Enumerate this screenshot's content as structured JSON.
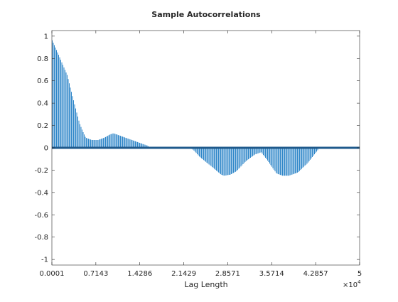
{
  "chart_data": {
    "type": "area",
    "title": "Sample Autocorrelations",
    "xlabel": "Lag Length",
    "ylabel": "",
    "x_exponent_label": "×10",
    "x_exponent_power": "4",
    "xlim": [
      1,
      50000
    ],
    "ylim": [
      -1.05,
      1.05
    ],
    "x_ticks": [
      1,
      7143,
      14286,
      21429,
      28571,
      35714,
      42857,
      50000
    ],
    "x_tick_labels": [
      "0.0001",
      "0.7143",
      "1.4286",
      "2.1429",
      "2.8571",
      "3.5714",
      "4.2857",
      "5"
    ],
    "y_ticks": [
      1,
      0.8,
      0.6,
      0.4,
      0.2,
      0,
      -0.2,
      -0.4,
      -0.6,
      -0.8,
      -1
    ],
    "y_tick_labels": [
      "1",
      "0.8",
      "0.6",
      "0.4",
      "0.2",
      "0",
      "-0.2",
      "-0.4",
      "-0.6",
      "-0.8",
      "-1"
    ],
    "grid": false,
    "stem_color": "#2e86c8",
    "baseline_color": "#1f5a8c",
    "series": [
      {
        "x": [
          1,
          1200,
          2500,
          3500,
          4500,
          5000,
          5500,
          6500,
          7500,
          8500,
          9500,
          10000,
          11000,
          12500,
          14000,
          15500,
          16000,
          22500,
          23000,
          24000,
          26000,
          27500,
          28000,
          29000,
          30000,
          31500,
          33000,
          34000,
          35000,
          36500,
          37500,
          38500,
          40000,
          41500,
          42500,
          43500,
          50000
        ],
        "y": [
          0.97,
          0.82,
          0.65,
          0.43,
          0.22,
          0.15,
          0.09,
          0.07,
          0.07,
          0.09,
          0.12,
          0.13,
          0.11,
          0.08,
          0.05,
          0.02,
          0.0,
          0.0,
          -0.02,
          -0.08,
          -0.17,
          -0.24,
          -0.25,
          -0.24,
          -0.21,
          -0.12,
          -0.06,
          -0.04,
          -0.11,
          -0.23,
          -0.25,
          -0.25,
          -0.22,
          -0.14,
          -0.07,
          0.0,
          0.0
        ]
      }
    ]
  }
}
